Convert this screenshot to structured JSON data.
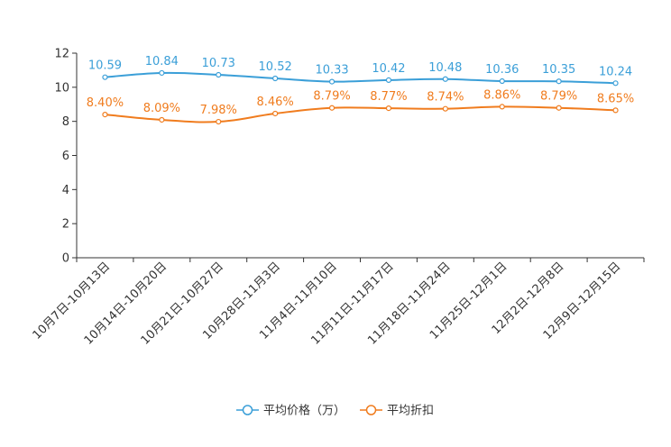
{
  "chart_data": {
    "type": "line",
    "title": "",
    "xlabel": "",
    "ylabel": "",
    "ylim": [
      0,
      12
    ],
    "yticks": [
      0,
      2,
      4,
      6,
      8,
      10,
      12
    ],
    "grid": false,
    "legend_position": "bottom-center",
    "categories": [
      "10月7日-10月13日",
      "10月14日-10月20日",
      "10月21日-10月27日",
      "10月28日-11月3日",
      "11月4日-11月10日",
      "11月11日-11月17日",
      "11月18日-11月24日",
      "11月25日-12月1日",
      "12月2日-12月8日",
      "12月9日-12月15日"
    ],
    "series": [
      {
        "name": "平均价格（万）",
        "color": "#3b9fd8",
        "values": [
          10.59,
          10.84,
          10.73,
          10.52,
          10.33,
          10.42,
          10.48,
          10.36,
          10.35,
          10.24
        ],
        "labels": [
          "10.59",
          "10.84",
          "10.73",
          "10.52",
          "10.33",
          "10.42",
          "10.48",
          "10.36",
          "10.35",
          "10.24"
        ]
      },
      {
        "name": "平均折扣",
        "color": "#f07c1e",
        "values": [
          8.4,
          8.09,
          7.98,
          8.46,
          8.79,
          8.77,
          8.74,
          8.86,
          8.79,
          8.65
        ],
        "labels": [
          "8.40%",
          "8.09%",
          "7.98%",
          "8.46%",
          "8.79%",
          "8.77%",
          "8.74%",
          "8.86%",
          "8.79%",
          "8.65%"
        ]
      }
    ]
  }
}
